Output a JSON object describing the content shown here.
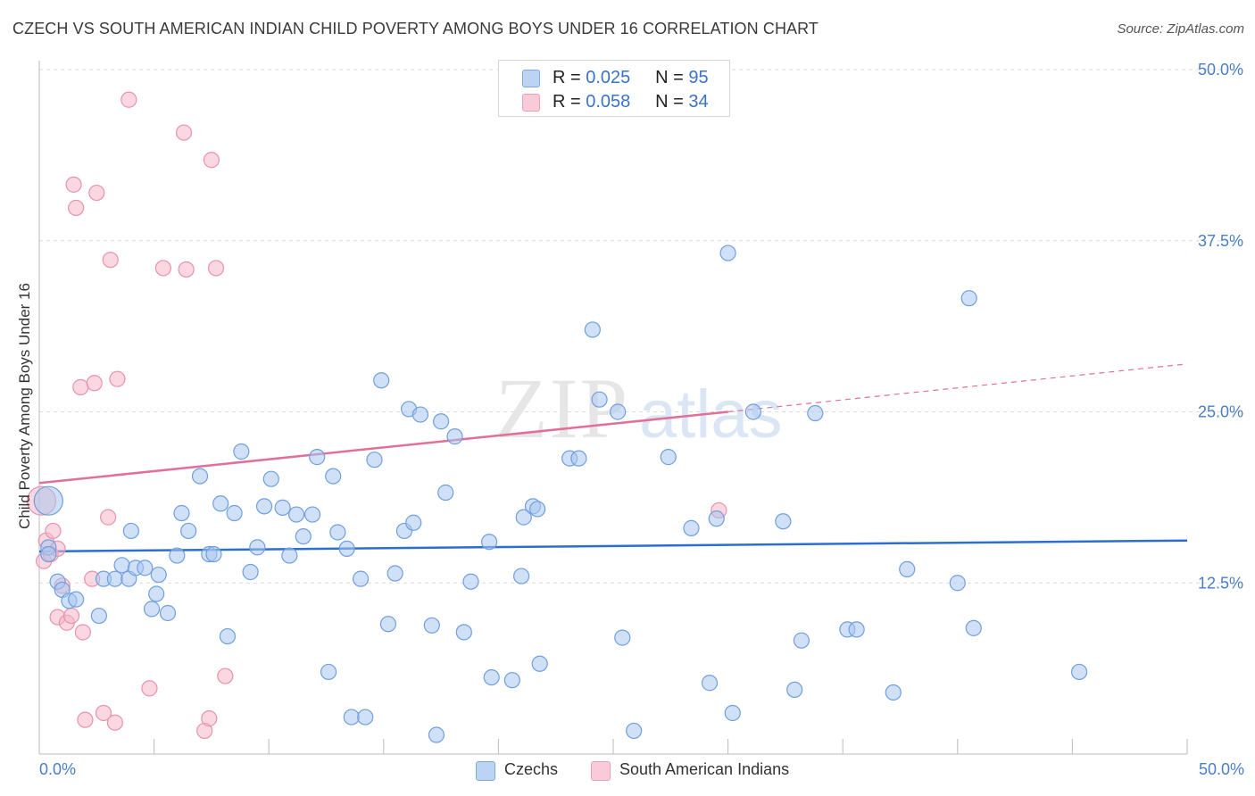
{
  "header": {
    "title": "CZECH VS SOUTH AMERICAN INDIAN CHILD POVERTY AMONG BOYS UNDER 16 CORRELATION CHART",
    "source": "Source: ZipAtlas.com"
  },
  "watermark": {
    "zip": "ZIP",
    "atlas": "atlas"
  },
  "legend": {
    "rows": [
      {
        "r_label": "R =",
        "r_value": "0.025",
        "n_label": "N =",
        "n_value": "95",
        "color": "#a9c7ef"
      },
      {
        "r_label": "R =",
        "r_value": "0.058",
        "n_label": "N =",
        "n_value": "34",
        "color": "#f6b7c9"
      }
    ]
  },
  "bottom_legend": {
    "czechs": "Czechs",
    "sai": "South American Indians"
  },
  "axes": {
    "ylabel": "Child Poverty Among Boys Under 16",
    "x_left_label": "0.0%",
    "x_right_label": "50.0%",
    "y_ticks": [
      "12.5%",
      "25.0%",
      "37.5%",
      "50.0%"
    ]
  },
  "colors": {
    "blue_fill": "#a9c7ef",
    "blue_stroke": "#6f9fde",
    "blue_line": "#2c6fd0",
    "pink_fill": "#f6b7c9",
    "pink_stroke": "#e893ad",
    "pink_line": "#e0709a",
    "grid": "#dcdcdc",
    "axis_text": "#4a7ec7"
  },
  "chart_data": {
    "type": "scatter",
    "title": "CZECH VS SOUTH AMERICAN INDIAN CHILD POVERTY AMONG BOYS UNDER 16 CORRELATION CHART",
    "xlabel": "",
    "ylabel": "Child Poverty Among Boys Under 16",
    "xlim": [
      0,
      50
    ],
    "ylim": [
      0,
      50
    ],
    "y_ticks": [
      12.5,
      25.0,
      37.5,
      50.0
    ],
    "grid": true,
    "legend_position": "top-center",
    "series": [
      {
        "name": "Czechs",
        "r": 0.025,
        "n": 95,
        "trend": {
          "x": [
            0,
            50
          ],
          "y": [
            14.8,
            15.6
          ]
        },
        "points": [
          [
            0.4,
            18.5
          ],
          [
            0.4,
            15.1
          ],
          [
            0.4,
            14.6
          ],
          [
            0.8,
            12.6
          ],
          [
            1.0,
            12.0
          ],
          [
            1.3,
            11.2
          ],
          [
            1.6,
            11.3
          ],
          [
            2.6,
            10.1
          ],
          [
            2.8,
            12.8
          ],
          [
            3.3,
            12.8
          ],
          [
            3.6,
            13.8
          ],
          [
            3.9,
            12.8
          ],
          [
            4.0,
            16.3
          ],
          [
            4.2,
            13.6
          ],
          [
            4.6,
            13.6
          ],
          [
            4.9,
            10.6
          ],
          [
            5.1,
            11.7
          ],
          [
            5.2,
            13.1
          ],
          [
            5.6,
            10.3
          ],
          [
            6.0,
            14.5
          ],
          [
            6.2,
            17.6
          ],
          [
            6.5,
            16.3
          ],
          [
            7.0,
            20.3
          ],
          [
            7.4,
            14.6
          ],
          [
            7.6,
            14.6
          ],
          [
            7.9,
            18.3
          ],
          [
            8.2,
            8.6
          ],
          [
            8.5,
            17.6
          ],
          [
            8.8,
            22.1
          ],
          [
            9.2,
            13.3
          ],
          [
            9.5,
            15.1
          ],
          [
            9.8,
            18.1
          ],
          [
            10.1,
            20.1
          ],
          [
            10.6,
            18.0
          ],
          [
            10.9,
            14.5
          ],
          [
            11.2,
            17.5
          ],
          [
            11.5,
            15.9
          ],
          [
            11.9,
            17.5
          ],
          [
            12.1,
            21.7
          ],
          [
            12.6,
            6.0
          ],
          [
            12.8,
            20.3
          ],
          [
            13.0,
            16.2
          ],
          [
            13.4,
            15.0
          ],
          [
            13.6,
            2.7
          ],
          [
            14.0,
            12.8
          ],
          [
            14.2,
            2.7
          ],
          [
            14.6,
            21.5
          ],
          [
            14.9,
            27.3
          ],
          [
            15.2,
            9.5
          ],
          [
            15.5,
            13.2
          ],
          [
            15.9,
            16.3
          ],
          [
            16.1,
            25.2
          ],
          [
            16.3,
            16.9
          ],
          [
            16.6,
            24.8
          ],
          [
            17.1,
            9.4
          ],
          [
            17.3,
            1.4
          ],
          [
            17.5,
            24.3
          ],
          [
            17.7,
            19.1
          ],
          [
            18.1,
            23.2
          ],
          [
            18.5,
            8.9
          ],
          [
            18.8,
            12.6
          ],
          [
            19.6,
            15.5
          ],
          [
            19.7,
            5.6
          ],
          [
            20.6,
            5.4
          ],
          [
            21.0,
            13.0
          ],
          [
            21.1,
            17.3
          ],
          [
            21.5,
            18.1
          ],
          [
            21.7,
            17.9
          ],
          [
            21.8,
            6.6
          ],
          [
            23.1,
            21.6
          ],
          [
            23.5,
            21.6
          ],
          [
            24.1,
            31.0
          ],
          [
            24.4,
            25.9
          ],
          [
            25.2,
            25.0
          ],
          [
            25.4,
            8.5
          ],
          [
            25.9,
            1.7
          ],
          [
            27.4,
            21.7
          ],
          [
            28.4,
            16.5
          ],
          [
            29.2,
            5.2
          ],
          [
            29.5,
            17.2
          ],
          [
            30.0,
            36.6
          ],
          [
            30.2,
            3.0
          ],
          [
            31.1,
            25.0
          ],
          [
            32.4,
            17.0
          ],
          [
            32.9,
            4.7
          ],
          [
            33.2,
            8.3
          ],
          [
            33.8,
            24.9
          ],
          [
            35.2,
            9.1
          ],
          [
            35.6,
            9.1
          ],
          [
            37.2,
            4.5
          ],
          [
            37.8,
            13.5
          ],
          [
            40.0,
            12.5
          ],
          [
            40.5,
            33.3
          ],
          [
            40.7,
            9.2
          ],
          [
            45.3,
            6.0
          ]
        ]
      },
      {
        "name": "South American Indians",
        "r": 0.058,
        "n": 34,
        "trend": {
          "x": [
            0,
            30
          ],
          "y": [
            19.8,
            25.0
          ]
        },
        "trend_extension": {
          "x": [
            30,
            50
          ],
          "y": [
            25.0,
            28.5
          ]
        },
        "points": [
          [
            0.1,
            18.5
          ],
          [
            0.2,
            14.1
          ],
          [
            0.3,
            15.6
          ],
          [
            0.5,
            14.6
          ],
          [
            0.6,
            16.3
          ],
          [
            0.8,
            15.0
          ],
          [
            0.8,
            10.0
          ],
          [
            1.0,
            12.3
          ],
          [
            1.2,
            9.6
          ],
          [
            1.4,
            10.1
          ],
          [
            1.5,
            41.6
          ],
          [
            1.6,
            39.9
          ],
          [
            1.8,
            26.8
          ],
          [
            1.9,
            8.9
          ],
          [
            2.0,
            2.5
          ],
          [
            2.3,
            12.8
          ],
          [
            2.4,
            27.1
          ],
          [
            2.5,
            41.0
          ],
          [
            2.8,
            3.0
          ],
          [
            3.0,
            17.3
          ],
          [
            3.1,
            36.1
          ],
          [
            3.3,
            2.3
          ],
          [
            3.4,
            27.4
          ],
          [
            3.9,
            47.8
          ],
          [
            4.8,
            4.8
          ],
          [
            5.4,
            35.5
          ],
          [
            6.3,
            45.4
          ],
          [
            6.4,
            35.4
          ],
          [
            7.2,
            1.7
          ],
          [
            7.4,
            2.6
          ],
          [
            7.5,
            43.4
          ],
          [
            7.7,
            35.5
          ],
          [
            8.1,
            5.7
          ],
          [
            29.6,
            17.8
          ]
        ]
      }
    ]
  }
}
